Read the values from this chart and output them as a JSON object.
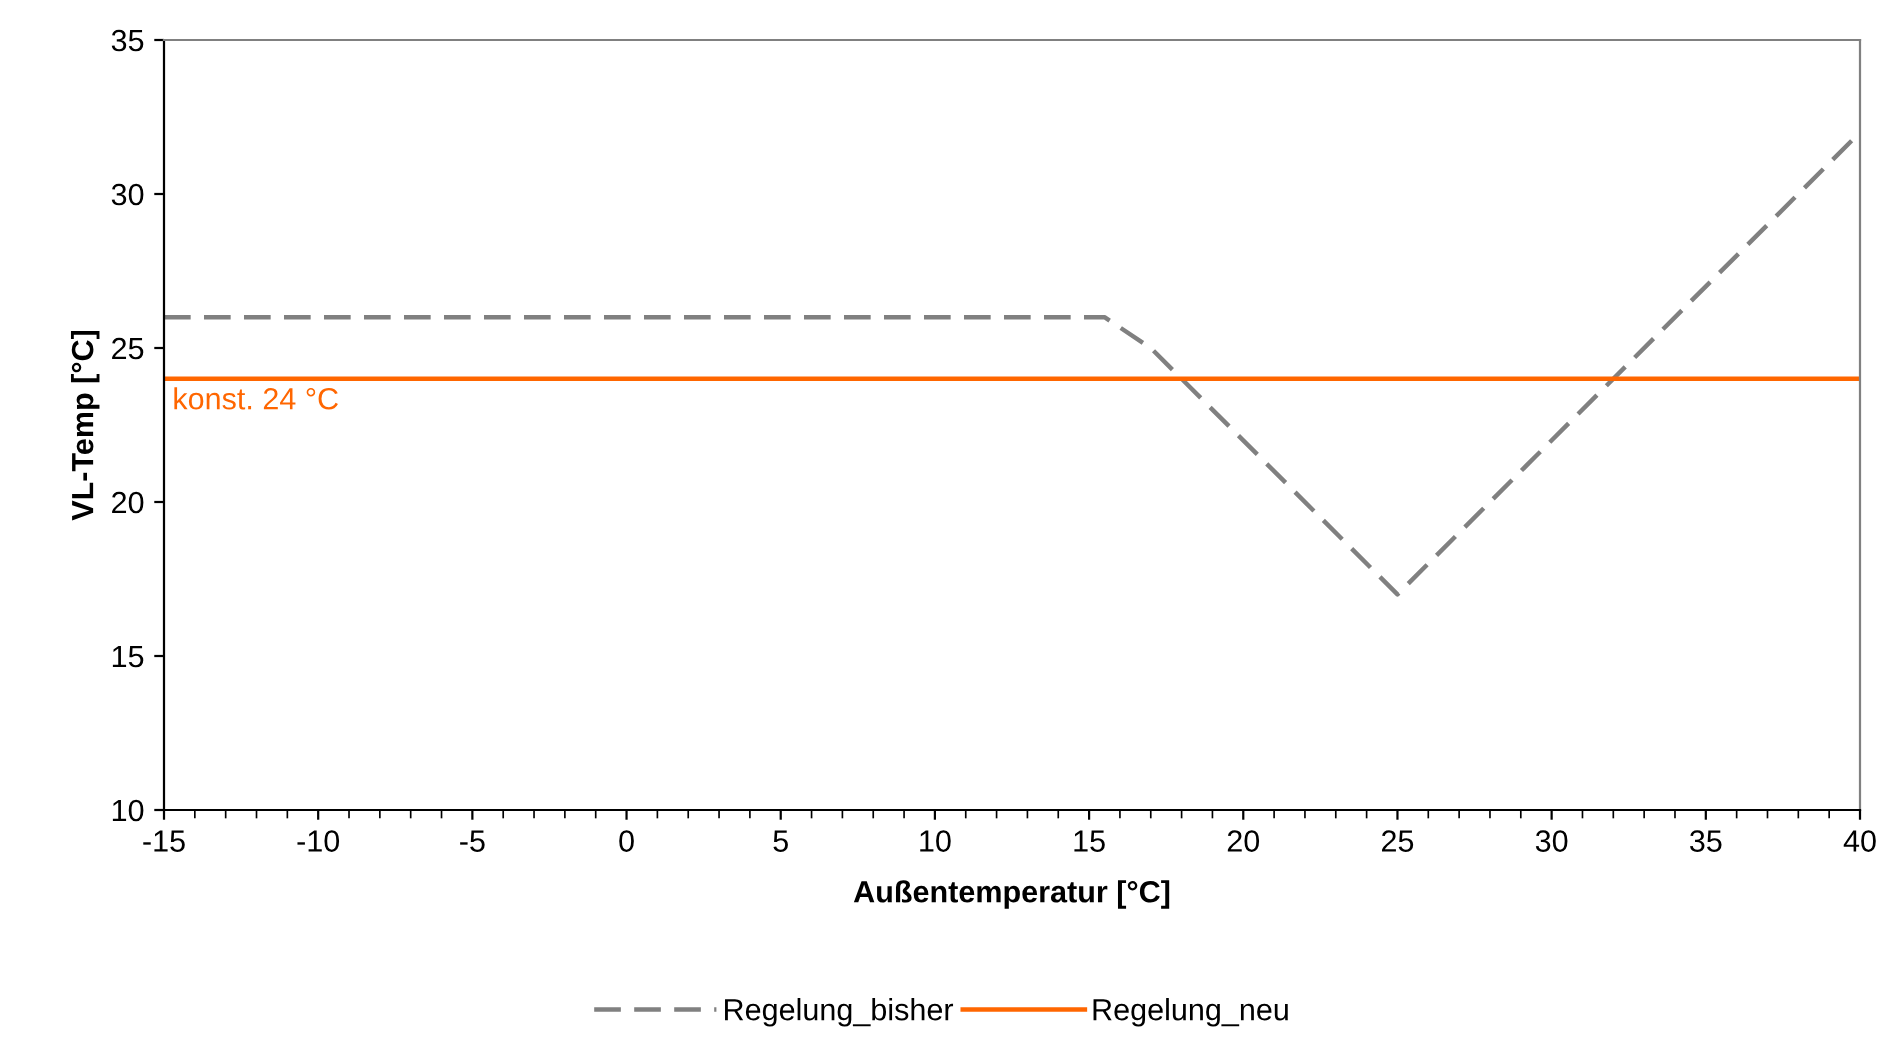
{
  "chart_data": {
    "type": "line",
    "xlabel": "Außentemperatur [°C]",
    "ylabel": "VL-Temp [°C]",
    "xlim": [
      -15,
      40
    ],
    "xticks": [
      -15,
      -10,
      -5,
      0,
      5,
      10,
      15,
      20,
      25,
      30,
      35,
      40
    ],
    "ylim": [
      10,
      35
    ],
    "yticks": [
      10,
      15,
      20,
      25,
      30,
      35
    ],
    "grid": false,
    "legend": "bottom",
    "marker": "none",
    "series": [
      {
        "name": "Regelung_bisher",
        "color": "#808080",
        "line_style": "dashed",
        "x": [
          -15,
          15.5,
          17,
          25,
          29.5,
          40
        ],
        "values": [
          26,
          26,
          25,
          17,
          21.5,
          32
        ]
      },
      {
        "name": "Regelung_neu",
        "color": "#ff6600",
        "line_style": "solid",
        "x": [
          -15,
          40
        ],
        "values": [
          24,
          24
        ]
      }
    ],
    "annotations": [
      {
        "text": "konst. 24 °C",
        "x": -15,
        "y": 24
      }
    ]
  }
}
